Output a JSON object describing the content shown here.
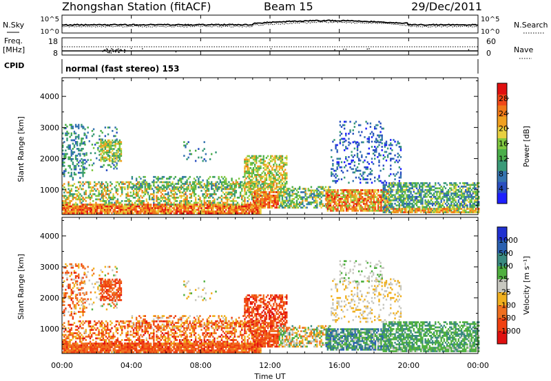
{
  "header": {
    "station": "Zhongshan Station (fitACF)",
    "beam": "Beam 15",
    "date": "29/Dec/2011"
  },
  "panels": {
    "nsky": {
      "label": "N.Sky",
      "tick_top": "10^5",
      "tick_bottom": "10^0",
      "right_label": "N.Search"
    },
    "freq": {
      "label_line1": "Freq.",
      "label_line2": "[MHz]",
      "tick_top": "18",
      "tick_bottom": "8",
      "right_tick_top": "60",
      "right_tick_bottom": "0",
      "right_label": "Nave"
    },
    "cpid": {
      "label": "CPID",
      "text": "normal (fast stereo) 153"
    }
  },
  "chart_data": [
    {
      "type": "heatmap",
      "name": "power-panel",
      "ylabel": "Slant Range [km]",
      "xlabel": "",
      "yticks": [
        "1000",
        "2000",
        "3000",
        "4000"
      ],
      "ylim": [
        200,
        4600
      ],
      "xlim": [
        0,
        24
      ],
      "colorbar": {
        "label": "Power [dB]",
        "ticks": [
          "4",
          "8",
          "12",
          "16",
          "20",
          "24",
          "28"
        ],
        "colors": [
          "#1e20ff",
          "#2a4fc0",
          "#3574b0",
          "#3a9a78",
          "#4aae4a",
          "#80c840",
          "#e8d040",
          "#f0a020",
          "#f07818",
          "#f04818",
          "#e01010"
        ]
      }
    },
    {
      "type": "heatmap",
      "name": "velocity-panel",
      "ylabel": "Slant Range [km]",
      "xlabel": "Time UT",
      "yticks": [
        "1000",
        "2000",
        "3000",
        "4000"
      ],
      "ylim": [
        200,
        4600
      ],
      "xlim": [
        0,
        24
      ],
      "xticks": [
        "00:00",
        "04:00",
        "08:00",
        "12:00",
        "16:00",
        "20:00",
        "00:00"
      ],
      "colorbar": {
        "label": "Velocity [m s⁻¹]",
        "ticks": [
          "1000",
          "500",
          "100",
          "25",
          "-25",
          "-100",
          "-500",
          "-1000"
        ],
        "colors": [
          "#2030d0",
          "#2a60b0",
          "#3a8a80",
          "#50b040",
          "#c8c8c0",
          "#f0b020",
          "#f07020",
          "#f04010",
          "#e01010"
        ]
      }
    }
  ]
}
